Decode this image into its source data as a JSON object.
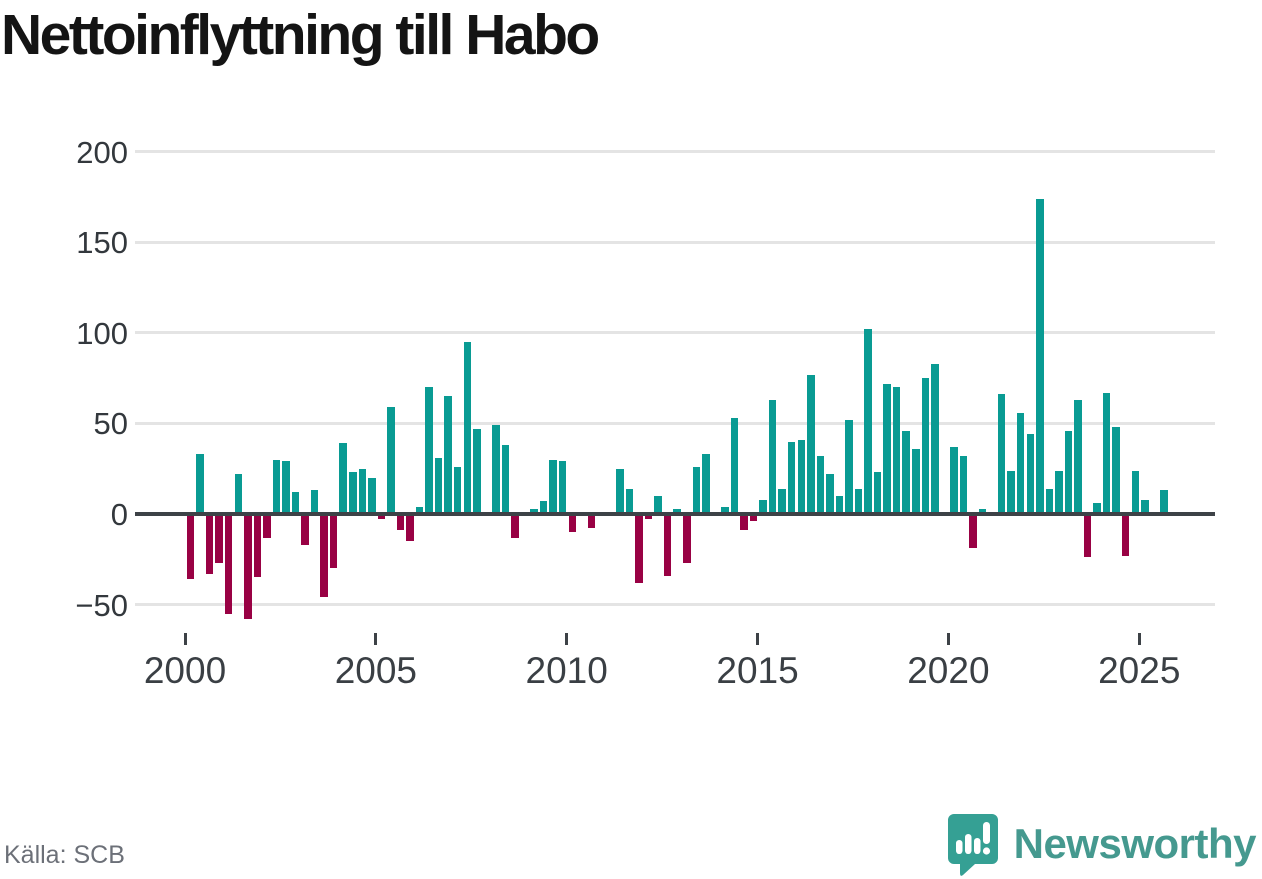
{
  "title": "Nettoinflyttning till Habo",
  "source_note": "Källa: SCB",
  "branding": {
    "wordmark": "Newsworthy",
    "logo_icon": "speech-bubble-bar-chart-icon",
    "wordmark_color": "#45998f",
    "icon_color": "#35a094"
  },
  "chart_data": {
    "type": "bar",
    "title": "Nettoinflyttning till Habo",
    "frequency": "quarterly",
    "x_start": {
      "year": 2000,
      "quarter": 1
    },
    "values": [
      -36,
      33,
      -33,
      -27,
      -55,
      22,
      -58,
      -35,
      -13,
      30,
      29,
      12,
      -17,
      13,
      -46,
      -30,
      39,
      23,
      25,
      20,
      -3,
      59,
      -9,
      -15,
      4,
      70,
      31,
      65,
      26,
      95,
      47,
      0,
      49,
      38,
      -13,
      0,
      3,
      7,
      30,
      29,
      -10,
      0,
      -8,
      0,
      0,
      25,
      14,
      -38,
      -3,
      10,
      -34,
      3,
      -27,
      26,
      33,
      0,
      4,
      53,
      -9,
      -4,
      8,
      63,
      14,
      40,
      41,
      77,
      32,
      22,
      10,
      52,
      14,
      102,
      23,
      72,
      70,
      46,
      36,
      75,
      83,
      0,
      37,
      32,
      -19,
      3,
      0,
      66,
      24,
      56,
      44,
      174,
      14,
      24,
      46,
      63,
      -24,
      6,
      67,
      48,
      -23,
      24,
      8,
      0,
      13
    ],
    "x_tick_years": [
      2000,
      2005,
      2010,
      2015,
      2020,
      2025
    ],
    "y_ticks": [
      200,
      150,
      100,
      50,
      0,
      -50
    ],
    "y_tick_labels": [
      "200",
      "150",
      "100",
      "50",
      "0",
      "−50"
    ],
    "ylim": [
      -62,
      210
    ],
    "grid": "horizontal",
    "legend": "none",
    "colors": {
      "positive": "#099b93",
      "negative": "#990144"
    }
  }
}
